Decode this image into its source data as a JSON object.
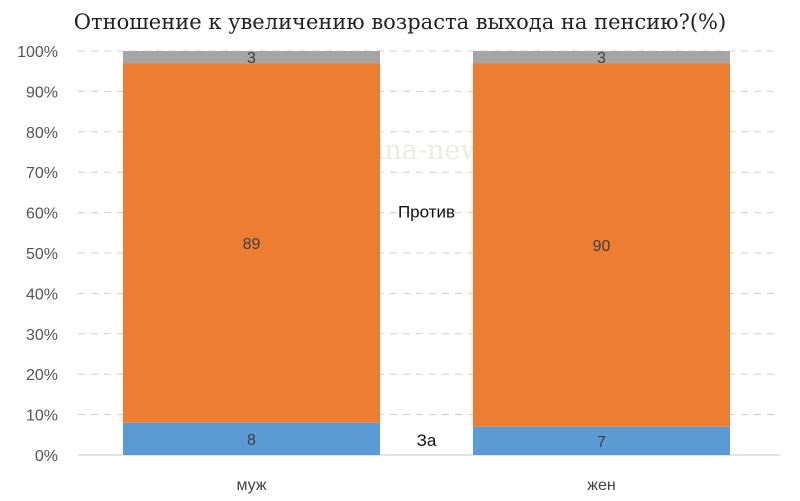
{
  "chart_data": {
    "type": "bar",
    "stacked": true,
    "normalized": true,
    "title": "Отношение к увеличению возраста выхода на пенсию?(%)",
    "watermark": "Левада © burckina-new.livejournal.com",
    "categories": [
      "муж",
      "жен"
    ],
    "series": [
      {
        "name": "За",
        "values": [
          8,
          7
        ],
        "color": "#5b9bd5"
      },
      {
        "name": "Против",
        "values": [
          89,
          90
        ],
        "color": "#ed7d31"
      },
      {
        "values": [
          3,
          3
        ],
        "color": "#a5a5a5"
      }
    ],
    "yticks": [
      "0%",
      "10%",
      "20%",
      "30%",
      "40%",
      "50%",
      "60%",
      "70%",
      "80%",
      "90%",
      "100%"
    ],
    "ylim": [
      0,
      100
    ],
    "grid": true,
    "grid_style": "dashed",
    "series_labels_position": "between-bars"
  }
}
